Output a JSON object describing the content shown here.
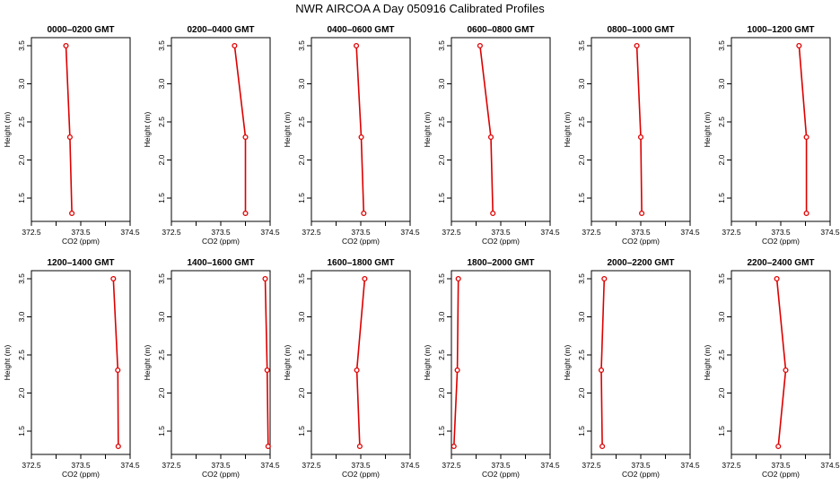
{
  "figure": {
    "title": "NWR AIRCOA A  Day 050916  Calibrated Profiles"
  },
  "style": {
    "line_color": "#dd0000",
    "point_color": "#dd0000",
    "axis_color": "#000000"
  },
  "chart_data": [
    {
      "type": "line",
      "title": "0000–0200 GMT",
      "xlabel": "CO2 (ppm)",
      "ylabel": "Height (m)",
      "xlim": [
        372.5,
        374.5
      ],
      "ylim": [
        1.3,
        3.5
      ],
      "x_ticks": [
        "372.5",
        "373.5",
        "374.5"
      ],
      "y_ticks": [
        "1.5",
        "2.0",
        "2.5",
        "3.0",
        "3.5"
      ],
      "series": [
        {
          "x": [
            373.2,
            373.28,
            373.32
          ],
          "y": [
            3.5,
            2.3,
            1.3
          ]
        }
      ]
    },
    {
      "type": "line",
      "title": "0200–0400 GMT",
      "xlabel": "CO2 (ppm)",
      "ylabel": "Height (m)",
      "xlim": [
        372.5,
        374.5
      ],
      "ylim": [
        1.3,
        3.5
      ],
      "x_ticks": [
        "372.5",
        "373.5",
        "374.5"
      ],
      "y_ticks": [
        "1.5",
        "2.0",
        "2.5",
        "3.0",
        "3.5"
      ],
      "series": [
        {
          "x": [
            373.78,
            374.0,
            374.0
          ],
          "y": [
            3.5,
            2.3,
            1.3
          ]
        }
      ]
    },
    {
      "type": "line",
      "title": "0400–0600 GMT",
      "xlabel": "CO2 (ppm)",
      "ylabel": "Height (m)",
      "xlim": [
        372.5,
        374.5
      ],
      "ylim": [
        1.3,
        3.5
      ],
      "x_ticks": [
        "372.5",
        "373.5",
        "374.5"
      ],
      "y_ticks": [
        "1.5",
        "2.0",
        "2.5",
        "3.0",
        "3.5"
      ],
      "series": [
        {
          "x": [
            373.41,
            373.51,
            373.56
          ],
          "y": [
            3.5,
            2.3,
            1.3
          ]
        }
      ]
    },
    {
      "type": "line",
      "title": "0600–0800 GMT",
      "xlabel": "CO2 (ppm)",
      "ylabel": "Height (m)",
      "xlim": [
        372.5,
        374.5
      ],
      "ylim": [
        1.3,
        3.5
      ],
      "x_ticks": [
        "372.5",
        "373.5",
        "374.5"
      ],
      "y_ticks": [
        "1.5",
        "2.0",
        "2.5",
        "3.0",
        "3.5"
      ],
      "series": [
        {
          "x": [
            373.08,
            373.3,
            373.34
          ],
          "y": [
            3.5,
            2.3,
            1.3
          ]
        }
      ]
    },
    {
      "type": "line",
      "title": "0800–1000 GMT",
      "xlabel": "CO2 (ppm)",
      "ylabel": "Height (m)",
      "xlim": [
        372.5,
        374.5
      ],
      "ylim": [
        1.3,
        3.5
      ],
      "x_ticks": [
        "372.5",
        "373.5",
        "374.5"
      ],
      "y_ticks": [
        "1.5",
        "2.0",
        "2.5",
        "3.0",
        "3.5"
      ],
      "series": [
        {
          "x": [
            373.42,
            373.5,
            373.52
          ],
          "y": [
            3.5,
            2.3,
            1.3
          ]
        }
      ]
    },
    {
      "type": "line",
      "title": "1000–1200 GMT",
      "xlabel": "CO2 (ppm)",
      "ylabel": "Height (m)",
      "xlim": [
        372.5,
        374.5
      ],
      "ylim": [
        1.3,
        3.5
      ],
      "x_ticks": [
        "372.5",
        "373.5",
        "374.5"
      ],
      "y_ticks": [
        "1.5",
        "2.0",
        "2.5",
        "3.0",
        "3.5"
      ],
      "series": [
        {
          "x": [
            373.87,
            374.02,
            374.02
          ],
          "y": [
            3.5,
            2.3,
            1.3
          ]
        }
      ]
    },
    {
      "type": "line",
      "title": "1200–1400 GMT",
      "xlabel": "CO2 (ppm)",
      "ylabel": "Height (m)",
      "xlim": [
        372.5,
        374.5
      ],
      "ylim": [
        1.3,
        3.5
      ],
      "x_ticks": [
        "372.5",
        "373.5",
        "374.5"
      ],
      "y_ticks": [
        "1.5",
        "2.0",
        "2.5",
        "3.0",
        "3.5"
      ],
      "series": [
        {
          "x": [
            374.16,
            374.25,
            374.26
          ],
          "y": [
            3.5,
            2.3,
            1.3
          ]
        }
      ]
    },
    {
      "type": "line",
      "title": "1400–1600 GMT",
      "xlabel": "CO2 (ppm)",
      "ylabel": "Height (m)",
      "xlim": [
        372.5,
        374.5
      ],
      "ylim": [
        1.3,
        3.5
      ],
      "x_ticks": [
        "372.5",
        "373.5",
        "374.5"
      ],
      "y_ticks": [
        "1.5",
        "2.0",
        "2.5",
        "3.0",
        "3.5"
      ],
      "series": [
        {
          "x": [
            374.4,
            374.44,
            374.46
          ],
          "y": [
            3.5,
            2.3,
            1.3
          ]
        }
      ]
    },
    {
      "type": "line",
      "title": "1600–1800 GMT",
      "xlabel": "CO2 (ppm)",
      "ylabel": "Height (m)",
      "xlim": [
        372.5,
        374.5
      ],
      "ylim": [
        1.3,
        3.5
      ],
      "x_ticks": [
        "372.5",
        "373.5",
        "374.5"
      ],
      "y_ticks": [
        "1.5",
        "2.0",
        "2.5",
        "3.0",
        "3.5"
      ],
      "series": [
        {
          "x": [
            373.58,
            373.42,
            373.48
          ],
          "y": [
            3.5,
            2.3,
            1.3
          ]
        }
      ]
    },
    {
      "type": "line",
      "title": "1800–2000 GMT",
      "xlabel": "CO2 (ppm)",
      "ylabel": "Height (m)",
      "xlim": [
        372.5,
        374.5
      ],
      "ylim": [
        1.3,
        3.5
      ],
      "x_ticks": [
        "372.5",
        "373.5",
        "374.5"
      ],
      "y_ticks": [
        "1.5",
        "2.0",
        "2.5",
        "3.0",
        "3.5"
      ],
      "series": [
        {
          "x": [
            372.64,
            372.62,
            372.55
          ],
          "y": [
            3.5,
            2.3,
            1.3
          ]
        }
      ]
    },
    {
      "type": "line",
      "title": "2000–2200 GMT",
      "xlabel": "CO2 (ppm)",
      "ylabel": "Height (m)",
      "xlim": [
        372.5,
        374.5
      ],
      "ylim": [
        1.3,
        3.5
      ],
      "x_ticks": [
        "372.5",
        "373.5",
        "374.5"
      ],
      "y_ticks": [
        "1.5",
        "2.0",
        "2.5",
        "3.0",
        "3.5"
      ],
      "series": [
        {
          "x": [
            372.76,
            372.7,
            372.72
          ],
          "y": [
            3.5,
            2.3,
            1.3
          ]
        }
      ]
    },
    {
      "type": "line",
      "title": "2200–2400 GMT",
      "xlabel": "CO2 (ppm)",
      "ylabel": "Height (m)",
      "xlim": [
        372.5,
        374.5
      ],
      "ylim": [
        1.3,
        3.5
      ],
      "x_ticks": [
        "372.5",
        "373.5",
        "374.5"
      ],
      "y_ticks": [
        "1.5",
        "2.0",
        "2.5",
        "3.0",
        "3.5"
      ],
      "series": [
        {
          "x": [
            373.42,
            373.6,
            373.45
          ],
          "y": [
            3.5,
            2.3,
            1.3
          ]
        }
      ]
    }
  ]
}
